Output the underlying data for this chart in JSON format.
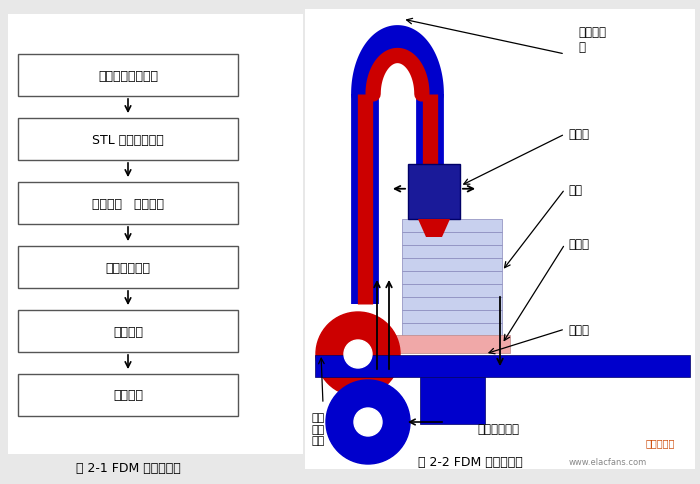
{
  "bg_color": "#e8e8e8",
  "left_boxes": [
    "建立三维实体模型",
    "STL 文件数据转换",
    "分层切片   加入支撇",
    "燕融沉积成型",
    "三维模型",
    "表面处理"
  ],
  "caption_left": "图 2-1 FDM 成型流程图",
  "caption_right": "图 2-2 FDM 系统模型图",
  "label_heat": "加热燕化\n腔",
  "label_feed": "给丝头",
  "label_support": "支撇",
  "label_foam": "泡漸板",
  "label_table": "工作台",
  "label_spool_support": "支撇\n材料\n丝盘",
  "label_spool_part": "刺件材料丝盘",
  "blue_color": "#0000cc",
  "red_color": "#cc0000",
  "dark_blue": "#1a1a99",
  "light_blue": "#c8d0ee",
  "pink_color": "#f0a8a8",
  "watermark": "www.elacfans.com",
  "logo_text": "电子发烧友"
}
